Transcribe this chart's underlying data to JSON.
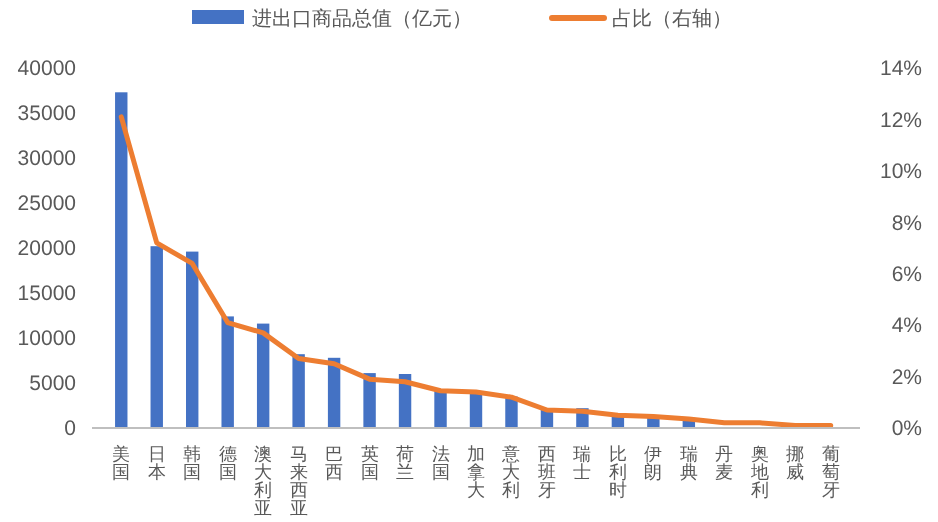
{
  "chart_data": {
    "type": "bar",
    "categories": [
      "美国",
      "日本",
      "韩国",
      "德国",
      "澳大利亚",
      "马来西亚",
      "巴西",
      "英国",
      "荷兰",
      "法国",
      "加拿大",
      "意大利",
      "西班牙",
      "瑞士",
      "比利时",
      "伊朗",
      "瑞典",
      "丹麦",
      "奥地利",
      "挪威",
      "葡萄牙"
    ],
    "series": [
      {
        "name": "进出口商品总值（亿元）",
        "color": "#4472c4",
        "values": [
          37300,
          20200,
          19600,
          12400,
          11600,
          8200,
          7800,
          6100,
          6000,
          4300,
          4000,
          3500,
          2200,
          2200,
          1400,
          1400,
          800,
          null,
          null,
          null,
          null
        ]
      },
      {
        "name": "占比（右轴）",
        "type": "line",
        "axis": "y2",
        "color": "#ed7d31",
        "values": [
          12.1,
          7.2,
          6.4,
          4.1,
          3.7,
          2.7,
          2.5,
          1.9,
          1.8,
          1.45,
          1.4,
          1.2,
          0.7,
          0.65,
          0.5,
          0.45,
          0.35,
          0.2,
          0.2,
          0.1,
          0.1
        ]
      }
    ],
    "ylim": [
      0,
      40000
    ],
    "yticks": [
      0,
      5000,
      10000,
      15000,
      20000,
      25000,
      30000,
      35000,
      40000
    ],
    "y2lim": [
      0,
      14
    ],
    "y2ticks": [
      {
        "value": 0,
        "label": "0%"
      },
      {
        "value": 2,
        "label": "2%"
      },
      {
        "value": 4,
        "label": "4%"
      },
      {
        "value": 6,
        "label": "6%"
      },
      {
        "value": 8,
        "label": "8%"
      },
      {
        "value": 10,
        "label": "10%"
      },
      {
        "value": 12,
        "label": "12%"
      },
      {
        "value": 14,
        "label": "14%"
      }
    ],
    "legend": "top",
    "grid": false
  }
}
